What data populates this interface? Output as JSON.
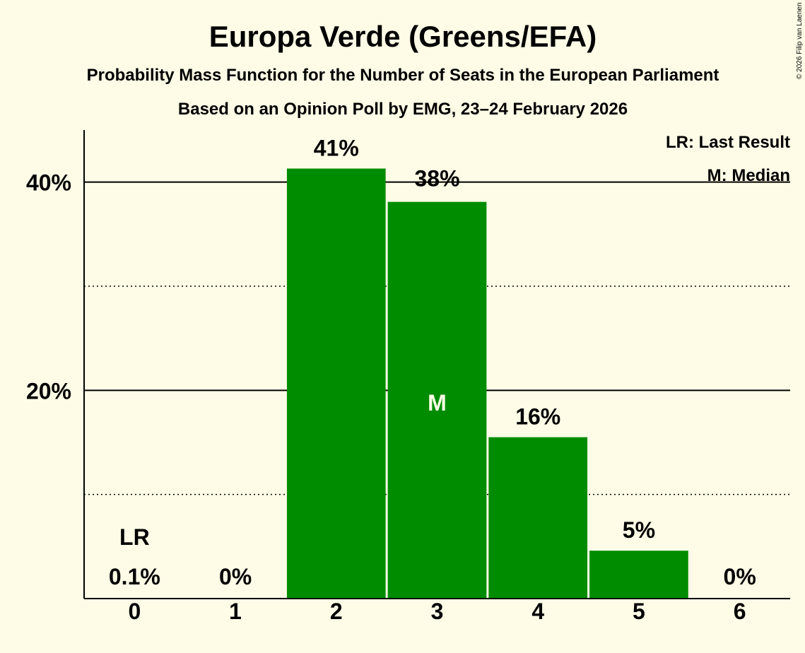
{
  "chart_data": {
    "type": "bar",
    "title": "Europa Verde (Greens/EFA)",
    "subtitle": "Probability Mass Function for the Number of Seats in the European Parliament",
    "subtitle2": "Based on an Opinion Poll by EMG, 23–24 February 2026",
    "categories": [
      "0",
      "1",
      "2",
      "3",
      "4",
      "5",
      "6"
    ],
    "values": [
      0.1,
      0,
      41.3,
      38.1,
      15.5,
      4.6,
      0
    ],
    "value_labels": [
      "0.1%",
      "0%",
      "41%",
      "38%",
      "16%",
      "5%",
      "0%"
    ],
    "ylim": [
      0,
      45
    ],
    "y_ticks": [
      {
        "value": 20,
        "label": "20%"
      },
      {
        "value": 40,
        "label": "40%"
      }
    ],
    "minor_gridlines": [
      10,
      30
    ],
    "bar_color": "#008c00",
    "last_result": {
      "index": 0,
      "label": "LR"
    },
    "median": {
      "index": 3,
      "label": "M"
    },
    "legend": [
      "LR: Last Result",
      "M: Median"
    ],
    "legend_position": "top-right"
  },
  "copyright": "© 2026 Filip van Laenen"
}
